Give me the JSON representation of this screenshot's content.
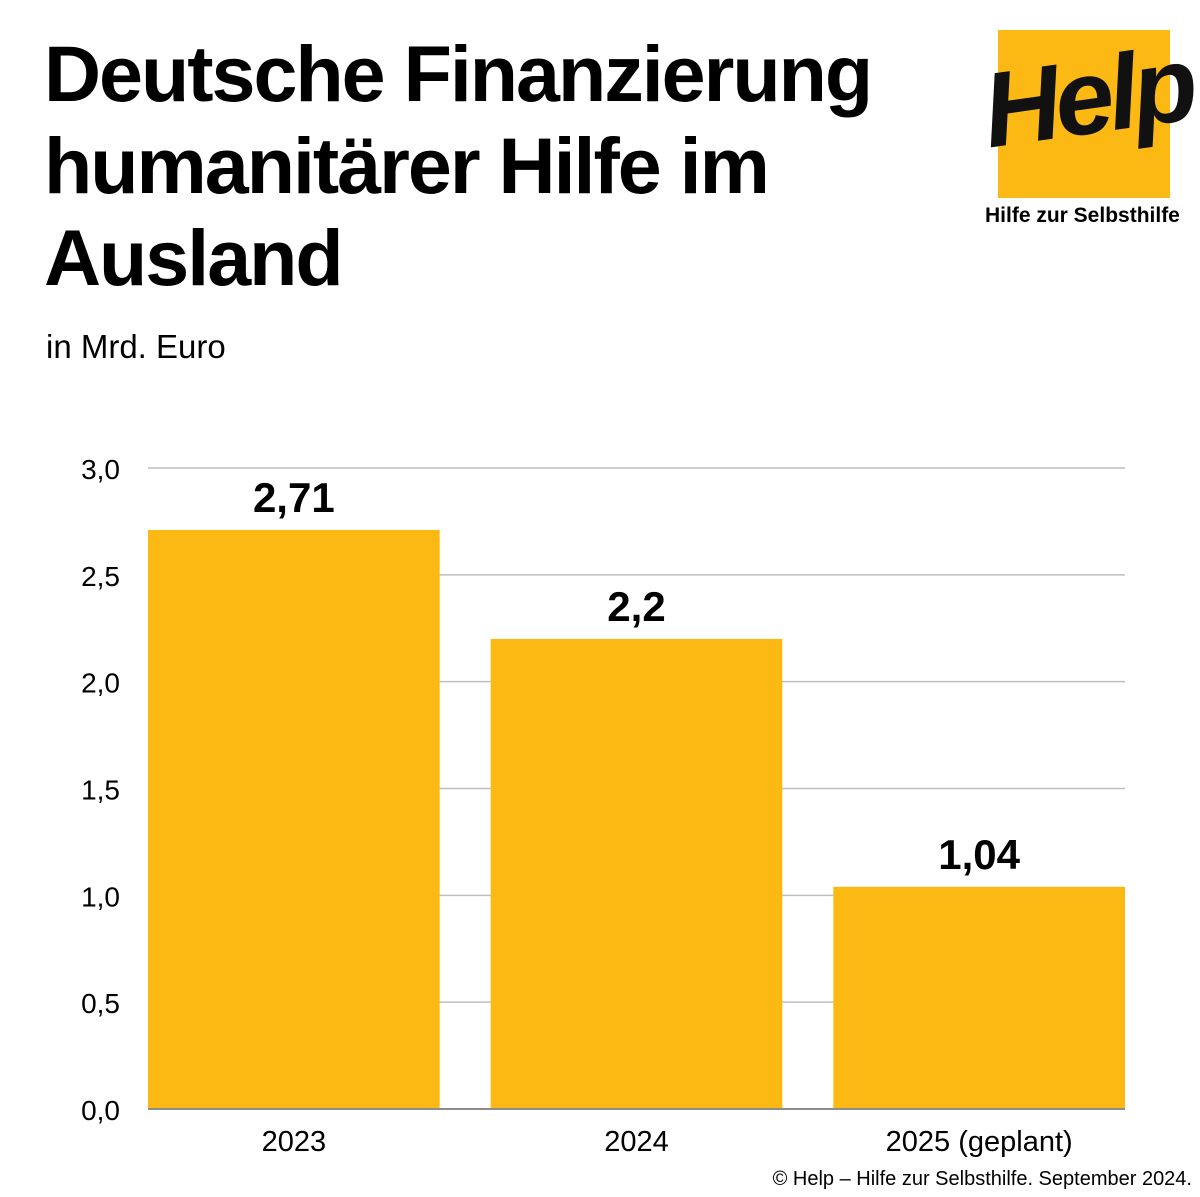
{
  "header": {
    "title": "Deutsche Finanzierung humanitärer Hilfe im Ausland",
    "subtitle": "in Mrd. Euro"
  },
  "logo": {
    "word": "Help",
    "tagline": "Hilfe zur Selbsthilfe",
    "color": "#fdb913"
  },
  "chart_data": {
    "type": "bar",
    "title": "Deutsche Finanzierung humanitärer Hilfe im Ausland",
    "subtitle": "in Mrd. Euro",
    "categories": [
      "2023",
      "2024",
      "2025 (geplant)"
    ],
    "values": [
      2.71,
      2.2,
      1.04
    ],
    "value_labels": [
      "2,71",
      "2,2",
      "1,04"
    ],
    "ylim": [
      0,
      3.0
    ],
    "yticks": [
      0,
      0.5,
      1.0,
      1.5,
      2.0,
      2.5,
      3.0
    ],
    "ytick_labels": [
      "0,0",
      "0,5",
      "1,0",
      "1,5",
      "2,0",
      "2,5",
      "3,0"
    ],
    "grid": true,
    "bar_color": "#fdb913",
    "grid_color": "#bfbfbf"
  },
  "footer": {
    "credit": "© Help – Hilfe zur Selbsthilfe. September 2024."
  }
}
